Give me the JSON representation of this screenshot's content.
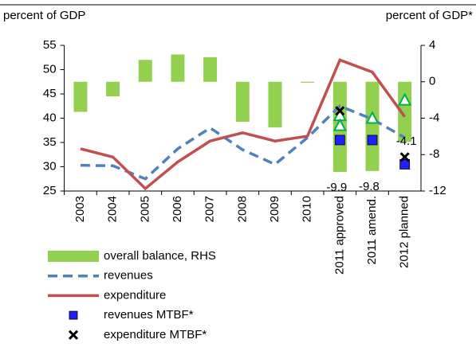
{
  "chart_data": {
    "type": "combo",
    "ylabel": "percent of GDP",
    "y2label": "percent of GDP*",
    "categories": [
      "2003",
      "2004",
      "2005",
      "2006",
      "2007",
      "2008",
      "2009",
      "2010",
      "2011 approved",
      "2011 amend.",
      "2012 planned"
    ],
    "ylim": [
      25,
      55
    ],
    "yticks": [
      25,
      30,
      35,
      40,
      45,
      50,
      55
    ],
    "y2lim": [
      -12,
      4
    ],
    "y2ticks": [
      -12,
      -8,
      -4,
      0,
      4
    ],
    "series": [
      {
        "name": "overall balance, RHS",
        "kind": "bar",
        "axis": "y2",
        "color": "#92d050",
        "values": [
          -3.3,
          -1.6,
          2.4,
          3.0,
          2.7,
          -4.4,
          -5.0,
          -0.1,
          -9.9,
          -9.8,
          -6.6
        ],
        "value_labels": [
          null,
          null,
          null,
          null,
          null,
          null,
          null,
          null,
          "-9.9",
          "-9.8",
          null
        ]
      },
      {
        "name": "revenues",
        "kind": "dashed",
        "color": "#4f81bd",
        "values": [
          30.3,
          30.2,
          27.5,
          33.7,
          38.0,
          33.5,
          30.5,
          36.0,
          42.5,
          39.8,
          36.0
        ]
      },
      {
        "name": "expenditure",
        "kind": "line",
        "color": "#c0504d",
        "values": [
          33.7,
          32.0,
          25.5,
          31.0,
          35.3,
          37.0,
          35.3,
          36.3,
          52.0,
          49.5,
          40.3
        ]
      },
      {
        "name": "revenues MTBF*",
        "kind": "square",
        "color": "#1f1fff",
        "values": [
          null,
          null,
          null,
          null,
          null,
          null,
          null,
          null,
          35.5,
          35.5,
          30.5
        ]
      },
      {
        "name": "expenditure MTBF*",
        "kind": "cross",
        "color": "#000000",
        "values": [
          null,
          null,
          null,
          null,
          null,
          null,
          null,
          null,
          41.5,
          null,
          32.0
        ]
      }
    ],
    "triangles": [
      {
        "axis": "y2",
        "color": "#00b050",
        "values": [
          null,
          null,
          null,
          null,
          null,
          null,
          null,
          null,
          -3.7,
          -4.0,
          -2.0
        ]
      },
      {
        "axis": "y2",
        "color": "#00b050",
        "values": [
          null,
          null,
          null,
          null,
          null,
          null,
          null,
          null,
          -4.8,
          null,
          null
        ]
      }
    ],
    "annotation": "-4.1"
  }
}
